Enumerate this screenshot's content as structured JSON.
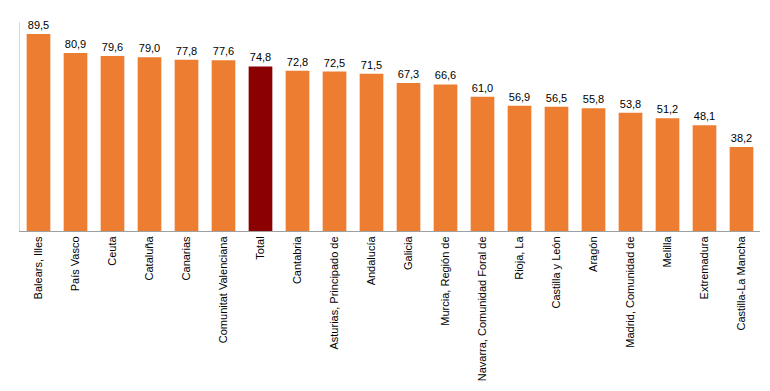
{
  "chart_data": {
    "type": "bar",
    "categories": [
      "Balears, Illes",
      "País Vasco",
      "Ceuta",
      "Cataluña",
      "Canarias",
      "Comunitat Valenciana",
      "Total",
      "Cantabria",
      "Asturias, Principado de",
      "Andalucía",
      "Galicia",
      "Murcia, Región de",
      "Navarra, Comunidad Foral de",
      "Rioja, La",
      "Castilla y León",
      "Aragón",
      "Madrid, Comunidad de",
      "Melilla",
      "Extremadura",
      "Castilla-La Mancha"
    ],
    "values": [
      89.5,
      80.9,
      79.6,
      79.0,
      77.8,
      77.6,
      74.8,
      72.8,
      72.5,
      71.5,
      67.3,
      66.6,
      61.0,
      56.9,
      56.5,
      55.8,
      53.8,
      51.2,
      48.1,
      38.2
    ],
    "value_labels": [
      "89,5",
      "80,9",
      "79,6",
      "79,0",
      "77,8",
      "77,6",
      "74,8",
      "72,8",
      "72,5",
      "71,5",
      "67,3",
      "66,6",
      "61,0",
      "56,9",
      "56,5",
      "55,8",
      "53,8",
      "51,2",
      "48,1",
      "38,2"
    ],
    "colors": [
      "#ED7D31",
      "#ED7D31",
      "#ED7D31",
      "#ED7D31",
      "#ED7D31",
      "#ED7D31",
      "#8B0000",
      "#ED7D31",
      "#ED7D31",
      "#ED7D31",
      "#ED7D31",
      "#ED7D31",
      "#ED7D31",
      "#ED7D31",
      "#ED7D31",
      "#ED7D31",
      "#ED7D31",
      "#ED7D31",
      "#ED7D31",
      "#ED7D31"
    ],
    "ylim": [
      0,
      95
    ],
    "data_labels": true,
    "tick_labels": "x",
    "grid": false
  }
}
